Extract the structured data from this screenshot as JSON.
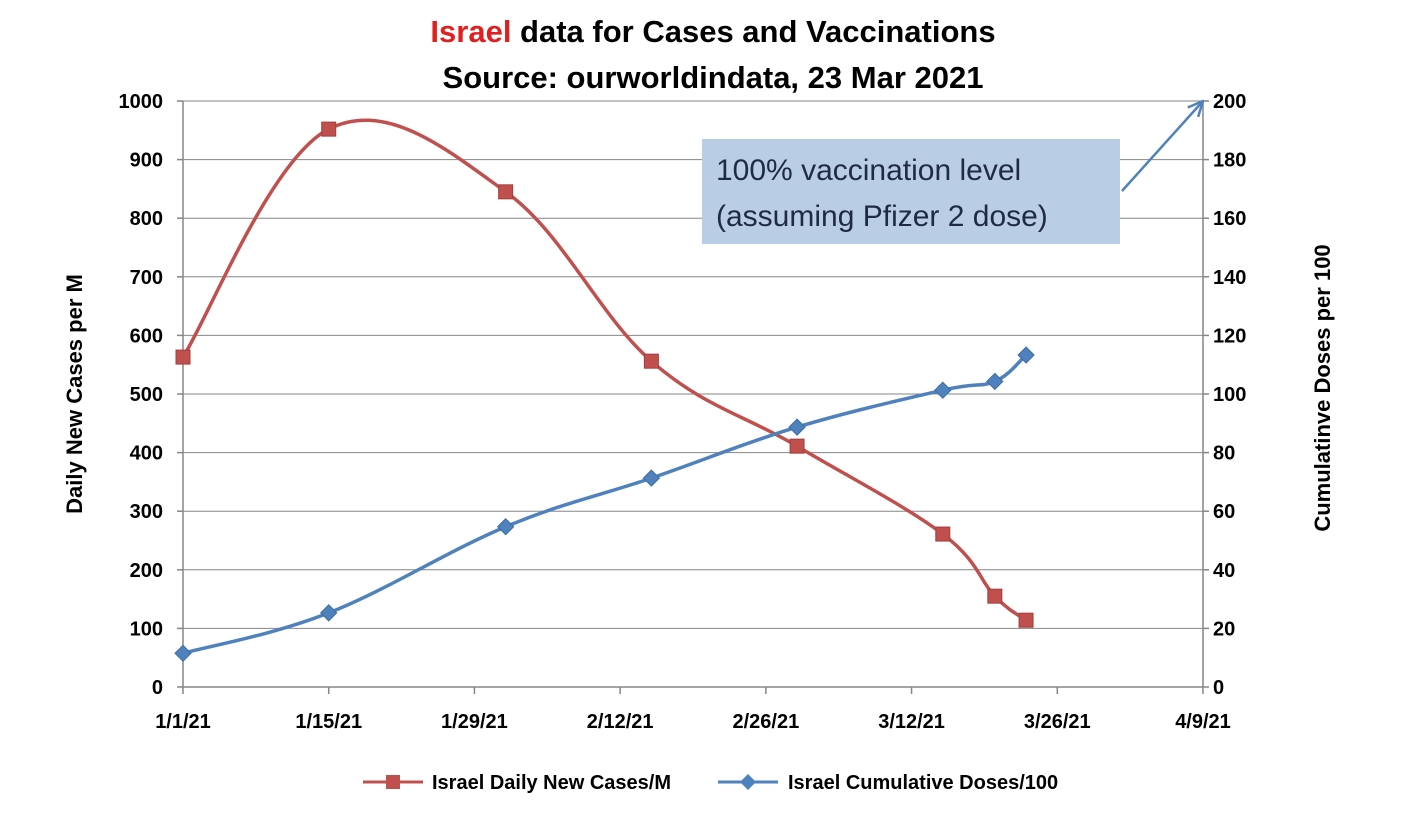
{
  "chart_data": {
    "type": "line",
    "title": {
      "highlight": "Israel",
      "highlight_color": "#e02020",
      "rest": " data for Cases and Vaccinations",
      "subtitle": "Source: ourworldindata, 23 Mar 2021"
    },
    "ylabel": "Daily New Cases per M",
    "y2label": "Cumulatinve Doses per 100",
    "ylim": [
      0,
      1000
    ],
    "y2lim": [
      0,
      200
    ],
    "xlim": [
      "2021-01-01",
      "2021-04-09"
    ],
    "x_ticks": [
      "1/1/21",
      "1/15/21",
      "1/29/21",
      "2/12/21",
      "2/26/21",
      "3/12/21",
      "3/26/21",
      "4/9/21"
    ],
    "y_ticks": [
      "0",
      "100",
      "200",
      "300",
      "400",
      "500",
      "600",
      "700",
      "800",
      "900",
      "1000"
    ],
    "y2_ticks": [
      "0",
      "20",
      "40",
      "60",
      "80",
      "100",
      "120",
      "140",
      "160",
      "180",
      "200"
    ],
    "grid": true,
    "legend_position": "bottom",
    "series": [
      {
        "name": "Israel Daily New Cases/M",
        "axis": "left",
        "color": "#c0504d",
        "marker": "square",
        "points": [
          {
            "x": "2021-01-01",
            "y": 563
          },
          {
            "x": "2021-01-15",
            "y": 952
          },
          {
            "x": "2021-02-01",
            "y": 845
          },
          {
            "x": "2021-02-15",
            "y": 556
          },
          {
            "x": "2021-03-01",
            "y": 411
          },
          {
            "x": "2021-03-15",
            "y": 261
          },
          {
            "x": "2021-03-20",
            "y": 155
          },
          {
            "x": "2021-03-23",
            "y": 114
          }
        ]
      },
      {
        "name": "Israel Cumulative Doses/100",
        "axis": "right",
        "color": "#4f81bd",
        "marker": "diamond",
        "points": [
          {
            "x": "2021-01-01",
            "y": 11.5
          },
          {
            "x": "2021-01-15",
            "y": 25.3
          },
          {
            "x": "2021-02-01",
            "y": 54.7
          },
          {
            "x": "2021-02-15",
            "y": 71.3
          },
          {
            "x": "2021-03-01",
            "y": 88.7
          },
          {
            "x": "2021-03-15",
            "y": 101.3
          },
          {
            "x": "2021-03-20",
            "y": 104.3
          },
          {
            "x": "2021-03-23",
            "y": 113.3
          }
        ]
      }
    ],
    "annotation": {
      "line1": "100% vaccination level",
      "line2": "(assuming Pfizer 2 dose)",
      "box_color": "#b9cde5",
      "arrow_color": "#4f81bd",
      "points_to": {
        "axis": "right",
        "y": 200
      }
    }
  }
}
